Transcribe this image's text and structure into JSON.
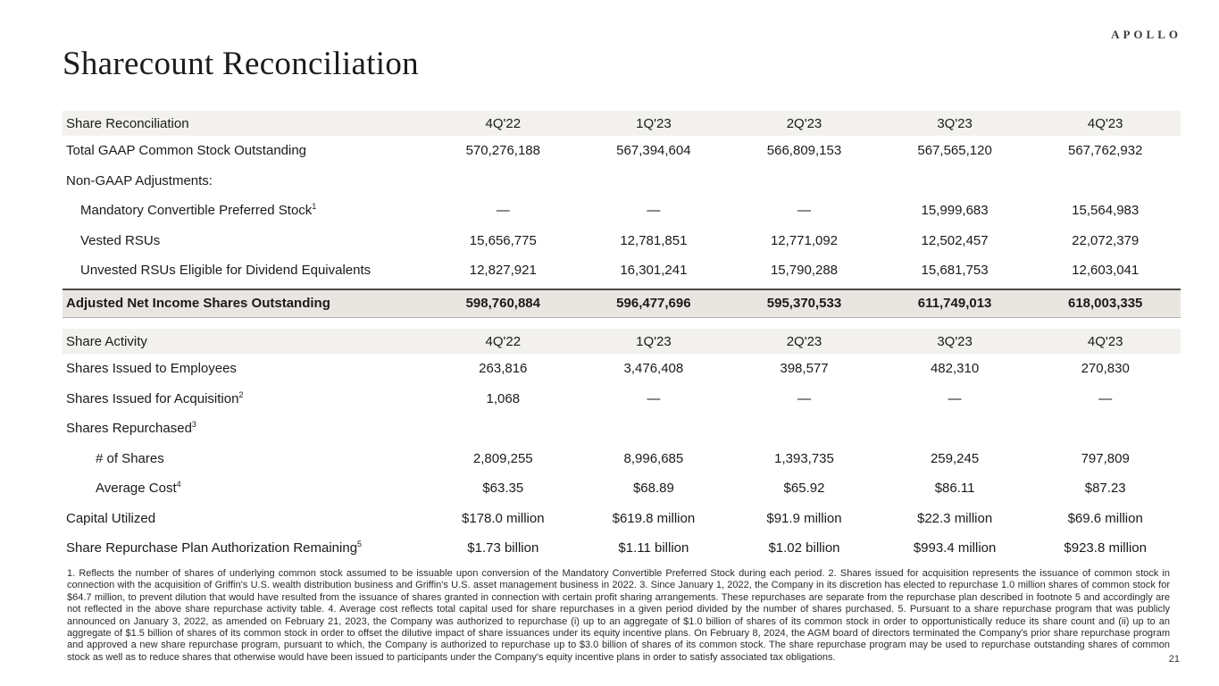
{
  "brand": {
    "logo": "APOLLO"
  },
  "page": {
    "title": "Sharecount Reconciliation",
    "page_number": "21"
  },
  "table1": {
    "title": "Share Reconciliation",
    "columns": [
      "4Q'22",
      "1Q'23",
      "2Q'23",
      "3Q'23",
      "4Q'23"
    ],
    "rows": [
      {
        "label": "Total GAAP Common Stock Outstanding",
        "values": [
          "570,276,188",
          "567,394,604",
          "566,809,153",
          "567,565,120",
          "567,762,932"
        ]
      },
      {
        "label": "Non-GAAP Adjustments:",
        "values": [
          "",
          "",
          "",
          "",
          ""
        ]
      },
      {
        "label": "Mandatory Convertible Preferred Stock",
        "sup": "1",
        "values": [
          "—",
          "—",
          "—",
          "15,999,683",
          "15,564,983"
        ]
      },
      {
        "label": "Vested RSUs",
        "values": [
          "15,656,775",
          "12,781,851",
          "12,771,092",
          "12,502,457",
          "22,072,379"
        ]
      },
      {
        "label": "Unvested RSUs Eligible for Dividend Equivalents",
        "values": [
          "12,827,921",
          "16,301,241",
          "15,790,288",
          "15,681,753",
          "12,603,041"
        ]
      },
      {
        "label": "Adjusted Net Income Shares Outstanding",
        "values": [
          "598,760,884",
          "596,477,696",
          "595,370,533",
          "611,749,013",
          "618,003,335"
        ]
      }
    ]
  },
  "table2": {
    "title": "Share Activity",
    "columns": [
      "4Q'22",
      "1Q'23",
      "2Q'23",
      "3Q'23",
      "4Q'23"
    ],
    "rows": [
      {
        "label": "Shares Issued to Employees",
        "values": [
          "263,816",
          "3,476,408",
          "398,577",
          "482,310",
          "270,830"
        ]
      },
      {
        "label": "Shares Issued for Acquisition",
        "sup": "2",
        "values": [
          "1,068",
          "—",
          "—",
          "—",
          "—"
        ]
      },
      {
        "label": "Shares Repurchased",
        "sup": "3",
        "values": [
          "",
          "",
          "",
          "",
          ""
        ]
      },
      {
        "label": "# of Shares",
        "values": [
          "2,809,255",
          "8,996,685",
          "1,393,735",
          "259,245",
          "797,809"
        ]
      },
      {
        "label": "Average Cost",
        "sup": "4",
        "values": [
          "$63.35",
          "$68.89",
          "$65.92",
          "$86.11",
          "$87.23"
        ]
      },
      {
        "label": "Capital Utilized",
        "values": [
          "$178.0 million",
          "$619.8 million",
          "$91.9 million",
          "$22.3 million",
          "$69.6 million"
        ]
      },
      {
        "label": "Share Repurchase Plan Authorization Remaining",
        "sup": "5",
        "values": [
          "$1.73 billion",
          "$1.11 billion",
          "$1.02 billion",
          "$993.4 million",
          "$923.8 million"
        ]
      }
    ]
  },
  "footnotes": "1. Reflects the number of shares of underlying common stock assumed to be issuable upon conversion of the Mandatory Convertible Preferred Stock during each period. 2. Shares issued for acquisition represents the issuance of common stock in connection with the acquisition of Griffin's U.S. wealth distribution business and Griffin's U.S. asset management business in 2022. 3. Since January 1, 2022, the Company in its discretion has elected to repurchase 1.0 million shares of common stock for $64.7 million, to prevent dilution that would have resulted from the issuance of shares granted in connection with certain profit sharing arrangements. These repurchases are separate from the repurchase plan described in footnote 5 and accordingly are not reflected in the above share repurchase activity table. 4. Average cost reflects total capital used for share repurchases in a given period divided by the number of shares purchased. 5. Pursuant to a share repurchase program that was publicly announced on January 3, 2022, as amended on February 21, 2023, the Company was authorized to repurchase (i) up to an aggregate of $1.0 billion of shares of its common stock in order to opportunistically reduce its share count and (ii) up to an aggregate of $1.5 billion of shares of its common stock in order to offset the dilutive impact of share issuances under its equity incentive plans. On February 8, 2024, the AGM board of directors terminated the Company's prior share repurchase program and approved a new share repurchase program, pursuant to which, the Company is authorized to repurchase up to $3.0 billion of shares of its common stock. The share repurchase program may be used to repurchase outstanding shares of common stock as well as to reduce shares that otherwise would have been issued to participants under the Company's equity incentive plans in order to satisfy associated tax obligations."
}
